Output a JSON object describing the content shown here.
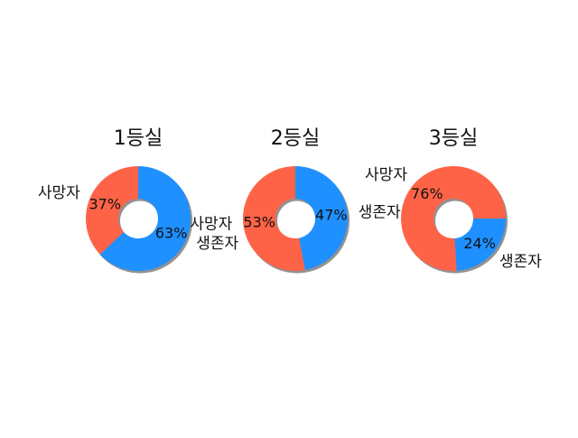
{
  "chart_data": [
    {
      "type": "pie",
      "title": "1등실",
      "categories": [
        "사망자",
        "생존자"
      ],
      "values": [
        37,
        63
      ],
      "value_labels": [
        "37%",
        "63%"
      ]
    },
    {
      "type": "pie",
      "title": "2등실",
      "categories": [
        "사망자",
        "생존자"
      ],
      "values": [
        53,
        47
      ],
      "value_labels": [
        "53%",
        "47%"
      ]
    },
    {
      "type": "pie",
      "title": "3등실",
      "categories": [
        "생존자",
        "사망자"
      ],
      "values": [
        24,
        76
      ],
      "value_labels": [
        "24%",
        "76%"
      ]
    }
  ],
  "colors": {
    "사망자": "#ff6347",
    "생존자": "#1e90ff",
    "shadow": "#7f7f7f"
  }
}
